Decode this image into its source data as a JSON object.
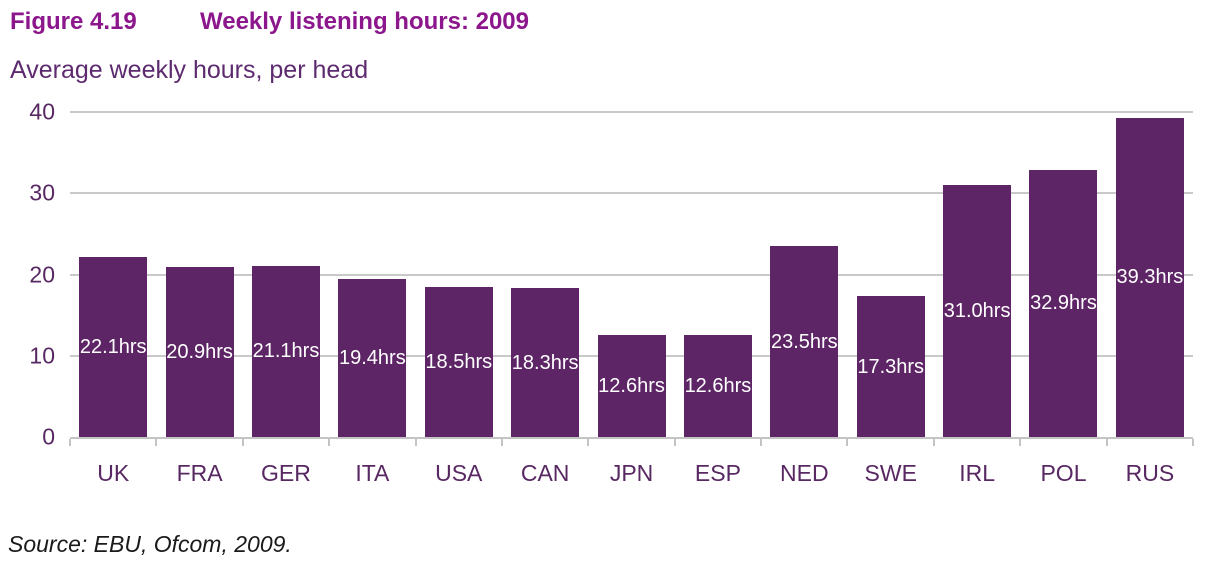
{
  "header": {
    "figure_label": "Figure 4.19",
    "title": "Weekly listening hours: 2009",
    "subtitle": "Average weekly hours, per head"
  },
  "chart_data": {
    "type": "bar",
    "title": "Weekly listening hours: 2009",
    "xlabel": "",
    "ylabel": "Average weekly hours, per head",
    "categories": [
      "UK",
      "FRA",
      "GER",
      "ITA",
      "USA",
      "CAN",
      "JPN",
      "ESP",
      "NED",
      "SWE",
      "IRL",
      "POL",
      "RUS"
    ],
    "values": [
      22.1,
      20.9,
      21.1,
      19.4,
      18.5,
      18.3,
      12.6,
      12.6,
      23.5,
      17.3,
      31.0,
      32.9,
      39.3
    ],
    "bar_labels": [
      "22.1hrs",
      "20.9hrs",
      "21.1hrs",
      "19.4hrs",
      "18.5hrs",
      "18.3hrs",
      "12.6hrs",
      "12.6hrs",
      "23.5hrs",
      "17.3hrs",
      "31.0hrs",
      "32.9hrs",
      "39.3hrs"
    ],
    "ylim": [
      0,
      40
    ],
    "yticks": [
      0,
      10,
      20,
      30,
      40
    ],
    "grid": true,
    "legend": false,
    "bar_value_label_position": "centered-inside-bar"
  },
  "footer": {
    "source": "Source: EBU, Ofcom, 2009."
  },
  "colors": {
    "title": "#8C168C",
    "subtitle": "#5D2A6F",
    "axis_text": "#582862",
    "bar": "#5E2566",
    "bar_label": "#FFFFFF",
    "gridline": "#C9C9C9",
    "axis_line": "#C4C4C4"
  }
}
